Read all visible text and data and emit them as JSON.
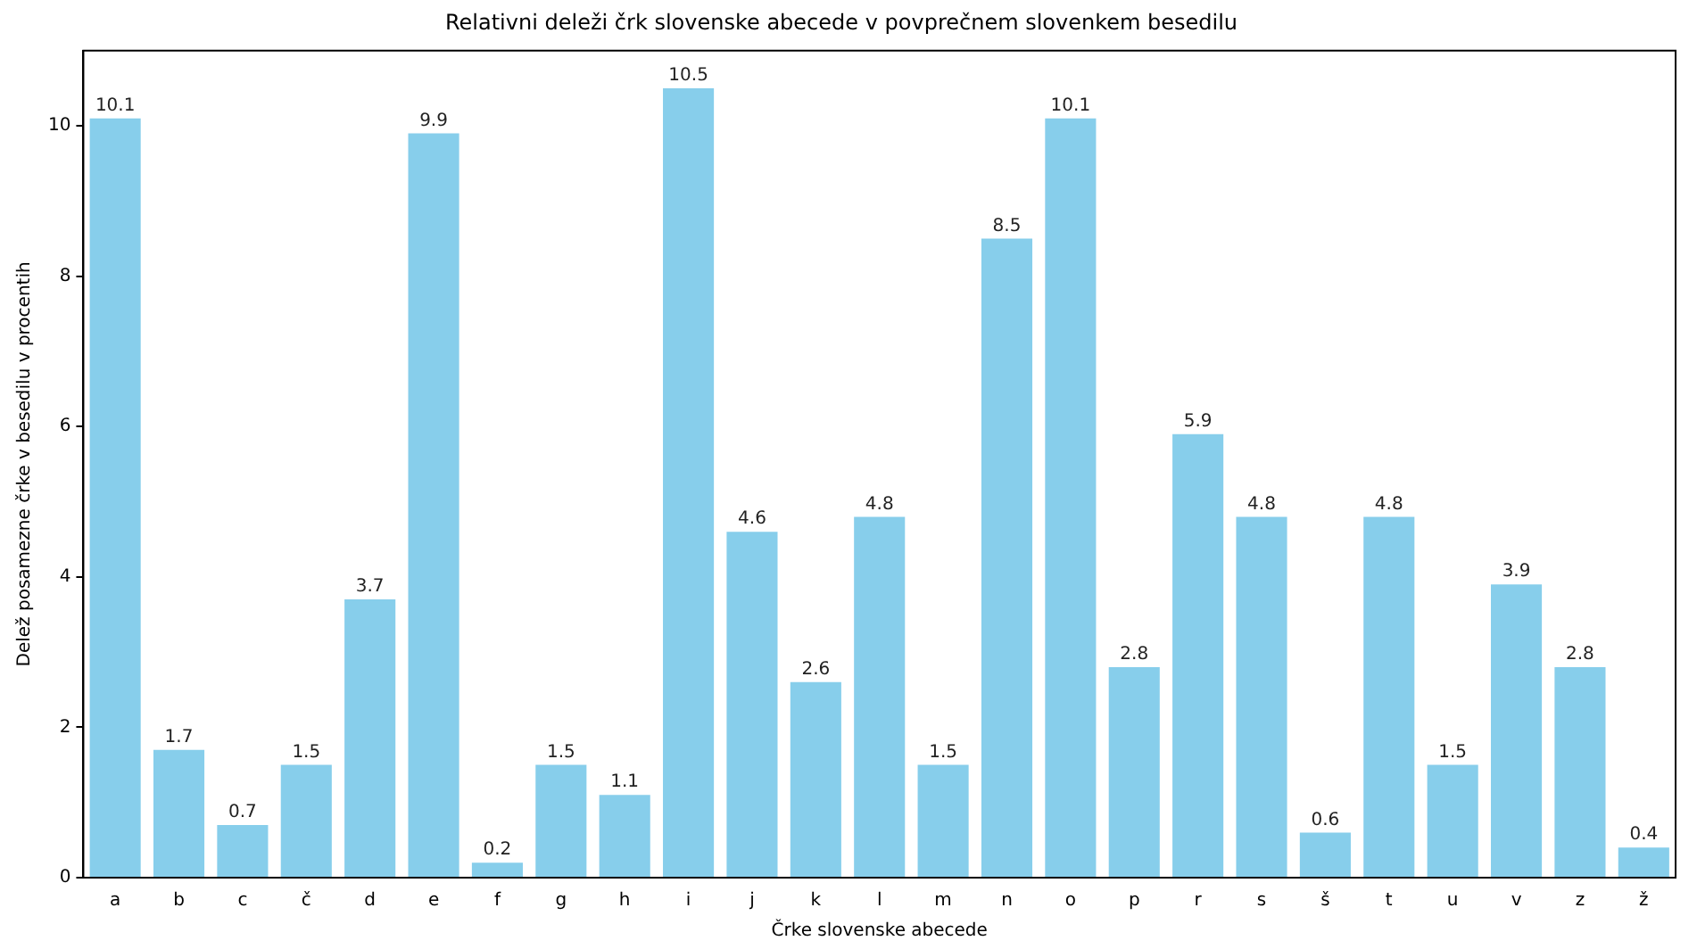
{
  "chart_data": {
    "type": "bar",
    "title": "Relativni deleži črk slovenske abecede v povprečnem slovenkem besedilu",
    "xlabel": "Črke slovenske abecede",
    "ylabel": "Delež posamezne črke v besedilu v procentih",
    "categories": [
      "a",
      "b",
      "c",
      "č",
      "d",
      "e",
      "f",
      "g",
      "h",
      "i",
      "j",
      "k",
      "l",
      "m",
      "n",
      "o",
      "p",
      "r",
      "s",
      "š",
      "t",
      "u",
      "v",
      "z",
      "ž"
    ],
    "values": [
      10.1,
      1.7,
      0.7,
      1.5,
      3.7,
      9.9,
      0.2,
      1.5,
      1.1,
      10.5,
      4.6,
      2.6,
      4.8,
      1.5,
      8.5,
      10.1,
      2.8,
      5.9,
      4.8,
      0.6,
      4.8,
      1.5,
      3.9,
      2.8,
      0.4
    ],
    "color": "#87ceeb",
    "ylim": [
      0,
      11
    ],
    "yticks": [
      0,
      2,
      4,
      6,
      8,
      10
    ],
    "data_labels": true,
    "grid": false,
    "legend": false
  }
}
